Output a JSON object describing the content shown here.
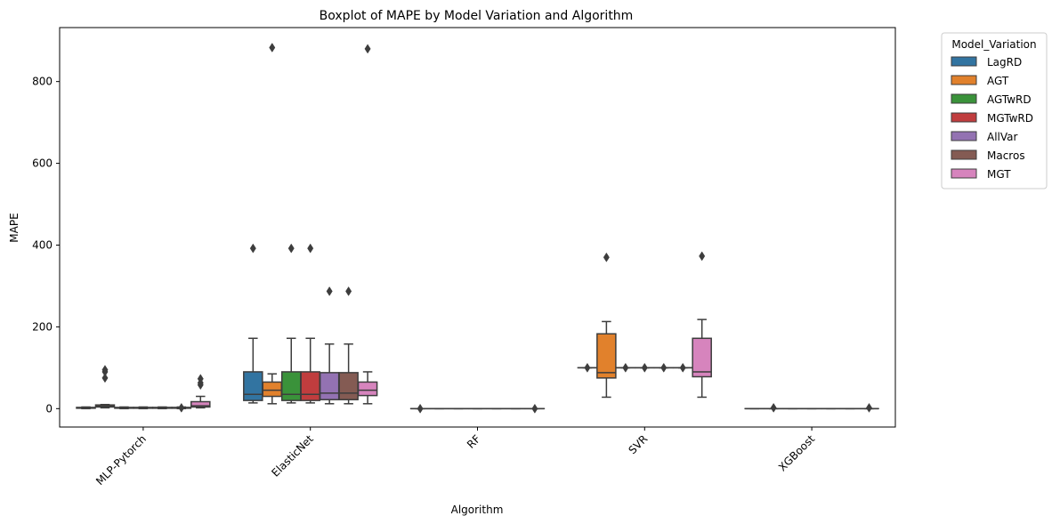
{
  "chart_data": {
    "type": "boxplot",
    "title": "Boxplot of MAPE by Model Variation and Algorithm",
    "xlabel": "Algorithm",
    "ylabel": "MAPE",
    "ylim": [
      -45,
      932
    ],
    "yticks": [
      0,
      200,
      400,
      600,
      800
    ],
    "grid": false,
    "legend": {
      "title": "Model_Variation",
      "placement": "outside-top-right"
    },
    "categories": [
      "MLP-Pytorch",
      "ElasticNet",
      "RF",
      "SVR",
      "XGBoost"
    ],
    "series": [
      {
        "name": "LagRD",
        "color": "#3274a1",
        "boxes": [
          {
            "q1": 1,
            "median": 2,
            "q3": 3,
            "whislo": 0,
            "whishi": 4,
            "fliers": []
          },
          {
            "q1": 20,
            "median": 35,
            "q3": 90,
            "whislo": 14,
            "whishi": 172,
            "fliers": [
              392
            ]
          },
          {
            "q1": 0,
            "median": 0,
            "q3": 0,
            "whislo": 0,
            "whishi": 0,
            "fliers": [
              0
            ]
          },
          {
            "q1": 100,
            "median": 100,
            "q3": 100,
            "whislo": 100,
            "whishi": 100,
            "fliers": [
              100
            ]
          },
          {
            "q1": 0,
            "median": 0,
            "q3": 0,
            "whislo": 0,
            "whishi": 0,
            "fliers": []
          }
        ]
      },
      {
        "name": "AGT",
        "color": "#e1812c",
        "boxes": [
          {
            "q1": 4,
            "median": 6,
            "q3": 9,
            "whislo": 2,
            "whishi": 10,
            "fliers": [
              75,
              90,
              95
            ]
          },
          {
            "q1": 30,
            "median": 45,
            "q3": 65,
            "whislo": 12,
            "whishi": 85,
            "fliers": [
              883
            ]
          },
          {
            "q1": 0,
            "median": 0,
            "q3": 0,
            "whislo": 0,
            "whishi": 0,
            "fliers": []
          },
          {
            "q1": 75,
            "median": 88,
            "q3": 183,
            "whislo": 28,
            "whishi": 213,
            "fliers": [
              370
            ]
          },
          {
            "q1": 0,
            "median": 0,
            "q3": 0,
            "whislo": 0,
            "whishi": 0,
            "fliers": [
              2
            ]
          }
        ]
      },
      {
        "name": "AGTwRD",
        "color": "#3a923a",
        "boxes": [
          {
            "q1": 1,
            "median": 2,
            "q3": 3,
            "whislo": 0,
            "whishi": 4,
            "fliers": []
          },
          {
            "q1": 20,
            "median": 35,
            "q3": 90,
            "whislo": 14,
            "whishi": 172,
            "fliers": [
              392
            ]
          },
          {
            "q1": 0,
            "median": 0,
            "q3": 0,
            "whislo": 0,
            "whishi": 0,
            "fliers": []
          },
          {
            "q1": 100,
            "median": 100,
            "q3": 100,
            "whislo": 100,
            "whishi": 100,
            "fliers": [
              100
            ]
          },
          {
            "q1": 0,
            "median": 0,
            "q3": 0,
            "whislo": 0,
            "whishi": 0,
            "fliers": []
          }
        ]
      },
      {
        "name": "MGTwRD",
        "color": "#c03d3e",
        "boxes": [
          {
            "q1": 1,
            "median": 2,
            "q3": 3,
            "whislo": 0,
            "whishi": 4,
            "fliers": []
          },
          {
            "q1": 20,
            "median": 35,
            "q3": 90,
            "whislo": 14,
            "whishi": 172,
            "fliers": [
              392
            ]
          },
          {
            "q1": 0,
            "median": 0,
            "q3": 0,
            "whislo": 0,
            "whishi": 0,
            "fliers": []
          },
          {
            "q1": 100,
            "median": 100,
            "q3": 100,
            "whislo": 100,
            "whishi": 100,
            "fliers": [
              100
            ]
          },
          {
            "q1": 0,
            "median": 0,
            "q3": 0,
            "whislo": 0,
            "whishi": 0,
            "fliers": []
          }
        ]
      },
      {
        "name": "AllVar",
        "color": "#9372b2",
        "boxes": [
          {
            "q1": 1,
            "median": 2,
            "q3": 3,
            "whislo": 0,
            "whishi": 4,
            "fliers": []
          },
          {
            "q1": 22,
            "median": 38,
            "q3": 88,
            "whislo": 12,
            "whishi": 158,
            "fliers": [
              287
            ]
          },
          {
            "q1": 0,
            "median": 0,
            "q3": 0,
            "whislo": 0,
            "whishi": 0,
            "fliers": []
          },
          {
            "q1": 100,
            "median": 100,
            "q3": 100,
            "whislo": 100,
            "whishi": 100,
            "fliers": [
              100
            ]
          },
          {
            "q1": 0,
            "median": 0,
            "q3": 0,
            "whislo": 0,
            "whishi": 0,
            "fliers": []
          }
        ]
      },
      {
        "name": "Macros",
        "color": "#845b53",
        "boxes": [
          {
            "q1": 1,
            "median": 2,
            "q3": 3,
            "whislo": 0,
            "whishi": 4,
            "fliers": [
              2
            ]
          },
          {
            "q1": 22,
            "median": 38,
            "q3": 88,
            "whislo": 12,
            "whishi": 158,
            "fliers": [
              287
            ]
          },
          {
            "q1": 0,
            "median": 0,
            "q3": 0,
            "whislo": 0,
            "whishi": 0,
            "fliers": []
          },
          {
            "q1": 100,
            "median": 100,
            "q3": 100,
            "whislo": 100,
            "whishi": 100,
            "fliers": [
              100
            ]
          },
          {
            "q1": 0,
            "median": 0,
            "q3": 0,
            "whislo": 0,
            "whishi": 0,
            "fliers": []
          }
        ]
      },
      {
        "name": "MGT",
        "color": "#d684bd",
        "boxes": [
          {
            "q1": 4,
            "median": 7,
            "q3": 17,
            "whislo": 2,
            "whishi": 30,
            "fliers": [
              58,
              63,
              73
            ]
          },
          {
            "q1": 32,
            "median": 45,
            "q3": 65,
            "whislo": 12,
            "whishi": 90,
            "fliers": [
              880
            ]
          },
          {
            "q1": 0,
            "median": 0,
            "q3": 0,
            "whislo": 0,
            "whishi": 0,
            "fliers": [
              0
            ]
          },
          {
            "q1": 78,
            "median": 90,
            "q3": 172,
            "whislo": 28,
            "whishi": 218,
            "fliers": [
              373
            ]
          },
          {
            "q1": 0,
            "median": 0,
            "q3": 0,
            "whislo": 0,
            "whishi": 0,
            "fliers": [
              2
            ]
          }
        ]
      }
    ]
  }
}
